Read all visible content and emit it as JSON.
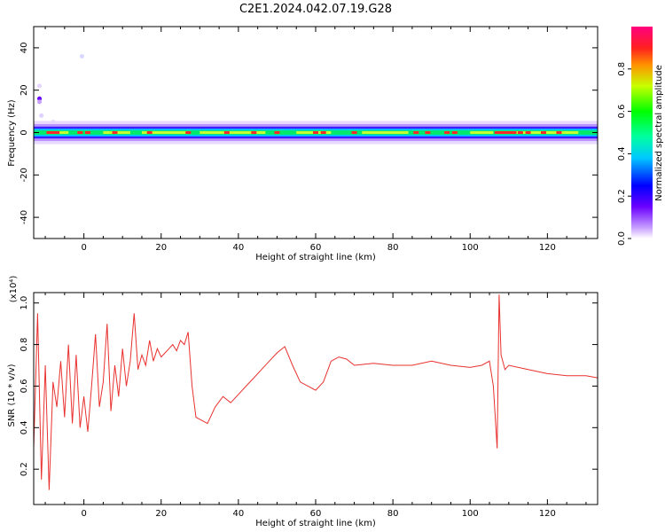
{
  "title": "C2E1.2024.042.07.19.G28",
  "colors": {
    "snr_line": "#e8312e",
    "axis": "#000000"
  },
  "chart_data": [
    {
      "type": "heatmap",
      "xlabel": "Height of straight line (km)",
      "ylabel": "Frequency (Hz)",
      "xlim": [
        -13,
        133
      ],
      "ylim": [
        -50,
        50
      ],
      "xticks": [
        0,
        20,
        40,
        60,
        80,
        100,
        120
      ],
      "yticks": [
        -40,
        -20,
        0,
        20,
        40
      ],
      "colorbar": {
        "label": "Normalized spectral amplitude",
        "range": [
          0,
          1
        ],
        "ticks": [
          0.0,
          0.2,
          0.4,
          0.6,
          0.8
        ],
        "tick_labels": [
          "0.0",
          "0.2",
          "0.4",
          "0.6",
          "0.8"
        ]
      },
      "grid": false
    },
    {
      "type": "line",
      "xlabel": "Height of straight line (km)",
      "ylabel": "SNR (10 * v/v)",
      "scale_label": "(x10⁴)",
      "xlim": [
        -13,
        133
      ],
      "ylim": [
        0.03,
        1.05
      ],
      "xticks": [
        0,
        20,
        40,
        60,
        80,
        100,
        120
      ],
      "yticks": [
        0.2,
        0.4,
        0.6,
        0.8,
        1.0
      ],
      "ytick_labels": [
        "0.2",
        "0.4",
        "0.6",
        "0.8",
        "1.0"
      ],
      "series": [
        {
          "x": [
            -13,
            -12,
            -11,
            -10,
            -9,
            -8,
            -7,
            -6,
            -5,
            -4,
            -3,
            -2,
            -1,
            0,
            1,
            2,
            3,
            4,
            5,
            6,
            7,
            8,
            9,
            10,
            11,
            12,
            13,
            14,
            15,
            16,
            17,
            18,
            19,
            20,
            21,
            22,
            23,
            24,
            25,
            26,
            27,
            28,
            29,
            30,
            32,
            34,
            36,
            38,
            40,
            42,
            44,
            46,
            48,
            50,
            52,
            54,
            56,
            58,
            60,
            62,
            64,
            66,
            68,
            70,
            75,
            80,
            85,
            90,
            95,
            100,
            103,
            105,
            106,
            107,
            107.5,
            108,
            109,
            110,
            115,
            120,
            125,
            130,
            133
          ],
          "y": [
            0.3,
            0.95,
            0.15,
            0.7,
            0.1,
            0.62,
            0.5,
            0.72,
            0.45,
            0.8,
            0.42,
            0.75,
            0.4,
            0.55,
            0.38,
            0.6,
            0.85,
            0.5,
            0.62,
            0.9,
            0.48,
            0.7,
            0.55,
            0.78,
            0.6,
            0.72,
            0.95,
            0.68,
            0.75,
            0.7,
            0.82,
            0.72,
            0.78,
            0.74,
            0.76,
            0.78,
            0.8,
            0.77,
            0.82,
            0.8,
            0.86,
            0.6,
            0.45,
            0.44,
            0.42,
            0.5,
            0.55,
            0.52,
            0.56,
            0.6,
            0.64,
            0.68,
            0.72,
            0.76,
            0.79,
            0.7,
            0.62,
            0.6,
            0.58,
            0.62,
            0.72,
            0.74,
            0.73,
            0.7,
            0.71,
            0.7,
            0.7,
            0.72,
            0.7,
            0.69,
            0.7,
            0.72,
            0.6,
            0.3,
            1.04,
            0.75,
            0.68,
            0.7,
            0.68,
            0.66,
            0.65,
            0.65,
            0.64
          ]
        }
      ]
    }
  ]
}
